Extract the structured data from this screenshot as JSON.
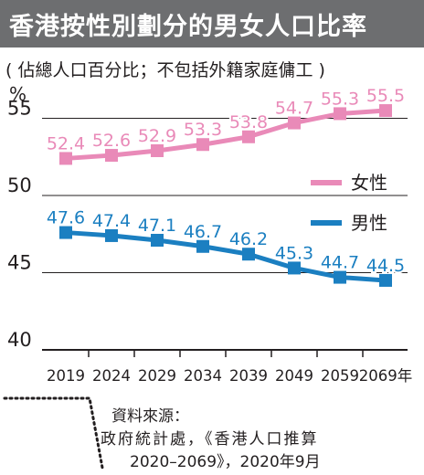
{
  "header": {
    "title": "香港按性別劃分的男女人口比率",
    "subtitle": "( 佔總人口百分比；不包括外籍家庭傭工 )"
  },
  "source": {
    "label": "資料來源：",
    "line1": "政府統計處，《香港人口推算",
    "line2": "2020–2069》，2020年9月"
  },
  "colors": {
    "female": "#e98ab8",
    "male": "#1b7fc1",
    "title_bg": "#6d6e70"
  },
  "chart_data": {
    "type": "line",
    "ylabel": "%",
    "ylim": [
      40,
      57
    ],
    "y_ticks": [
      40,
      45,
      50,
      55
    ],
    "grid": true,
    "legend_position": "right",
    "categories": [
      "2019",
      "2024",
      "2029",
      "2034",
      "2039",
      "2049",
      "2059",
      "2069年"
    ],
    "series": [
      {
        "name": "女性",
        "color": "#e98ab8",
        "values": [
          52.4,
          52.6,
          52.9,
          53.3,
          53.8,
          54.7,
          55.3,
          55.5
        ]
      },
      {
        "name": "男性",
        "color": "#1b7fc1",
        "values": [
          47.6,
          47.4,
          47.1,
          46.7,
          46.2,
          45.3,
          44.7,
          44.5
        ]
      }
    ]
  }
}
